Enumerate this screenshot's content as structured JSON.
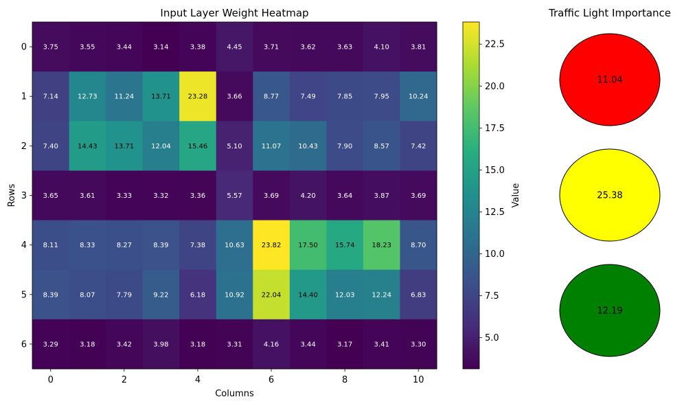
{
  "chart_data": [
    {
      "type": "heatmap",
      "title": "Input Layer Weight Heatmap",
      "xlabel": "Columns",
      "ylabel": "Rows",
      "x_ticks": [
        "0",
        "2",
        "4",
        "6",
        "8",
        "10"
      ],
      "y_ticks": [
        "0",
        "1",
        "2",
        "3",
        "4",
        "5",
        "6"
      ],
      "colorbar": {
        "label": "Value",
        "range": [
          3.14,
          23.82
        ],
        "ticks": [
          "5.0",
          "7.5",
          "10.0",
          "12.5",
          "15.0",
          "17.5",
          "20.0",
          "22.5"
        ],
        "colormap": "viridis"
      },
      "values": [
        [
          3.75,
          3.55,
          3.44,
          3.14,
          3.38,
          4.45,
          3.71,
          3.62,
          3.63,
          4.1,
          3.81
        ],
        [
          7.14,
          12.73,
          11.24,
          13.71,
          23.28,
          3.66,
          8.77,
          7.49,
          7.85,
          7.95,
          10.24
        ],
        [
          7.4,
          14.43,
          13.71,
          12.04,
          15.46,
          5.1,
          11.07,
          10.43,
          7.9,
          8.57,
          7.42
        ],
        [
          3.65,
          3.61,
          3.33,
          3.32,
          3.36,
          5.57,
          3.69,
          4.2,
          3.64,
          3.87,
          3.69
        ],
        [
          8.11,
          8.33,
          8.27,
          8.39,
          7.38,
          10.63,
          23.82,
          17.5,
          15.74,
          18.23,
          8.7
        ],
        [
          8.39,
          8.07,
          7.79,
          9.22,
          6.18,
          10.92,
          22.04,
          14.4,
          12.03,
          12.24,
          6.83
        ],
        [
          3.29,
          3.18,
          3.42,
          3.98,
          3.18,
          3.31,
          4.16,
          3.44,
          3.17,
          3.41,
          3.3
        ]
      ]
    },
    {
      "type": "other",
      "title": "Traffic Light Importance",
      "lights": [
        {
          "label": "11.04",
          "value": 11.04,
          "color": "#ff0000"
        },
        {
          "label": "25.38",
          "value": 25.38,
          "color": "#ffff00"
        },
        {
          "label": "12.19",
          "value": 12.19,
          "color": "#008000"
        }
      ]
    }
  ]
}
